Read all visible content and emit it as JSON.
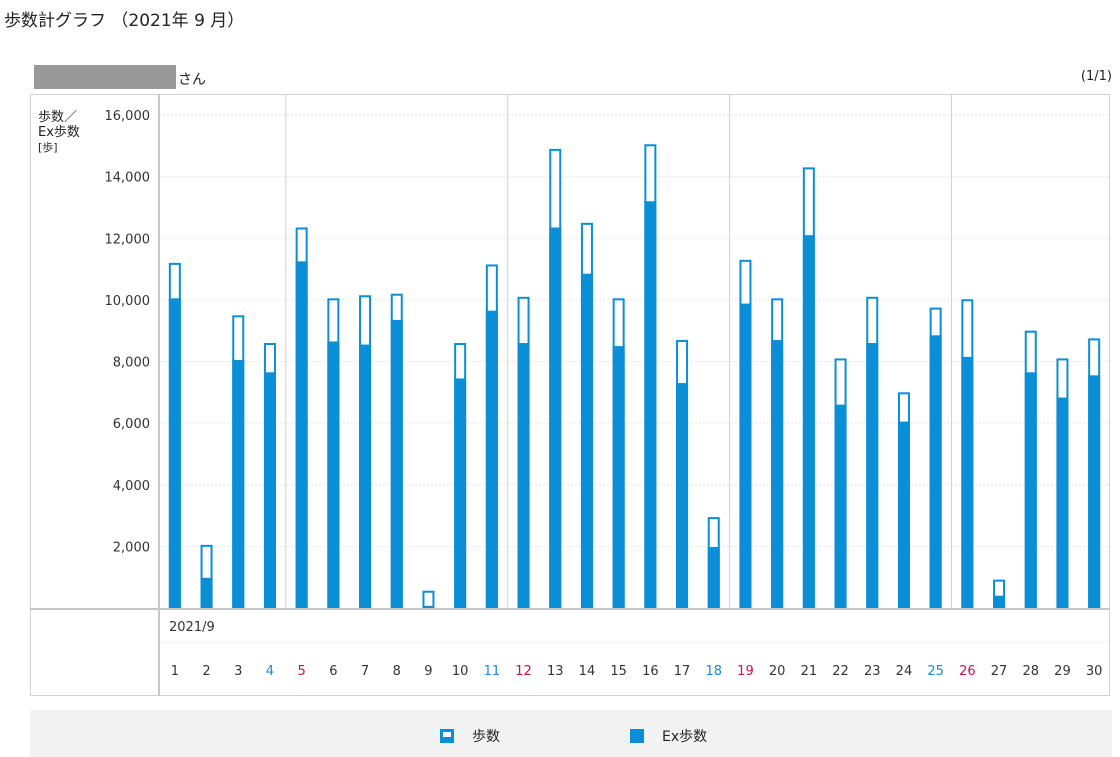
{
  "page": {
    "title": "歩数計グラフ （2021年 9 月）",
    "user_suffix": "さん",
    "page_indicator": "(1/1)"
  },
  "colors": {
    "bar": "#0a8fd6",
    "weekday": "#333333",
    "saturday": "#1a8ad4",
    "sunday": "#c8104a",
    "grid": "#e5e5e5"
  },
  "chart_data": {
    "type": "bar",
    "ylabel": [
      "歩数／",
      "Ex歩数"
    ],
    "yunit": "[歩]",
    "xlabel": "2021/9",
    "ylim": [
      0,
      16000
    ],
    "yticks": [
      2000,
      4000,
      6000,
      8000,
      10000,
      12000,
      14000,
      16000
    ],
    "ytick_labels": [
      "2,000",
      "4,000",
      "6,000",
      "8,000",
      "10,000",
      "12,000",
      "14,000",
      "16,000"
    ],
    "categories": [
      "1",
      "2",
      "3",
      "4",
      "5",
      "6",
      "7",
      "8",
      "9",
      "10",
      "11",
      "12",
      "13",
      "14",
      "15",
      "16",
      "17",
      "18",
      "19",
      "20",
      "21",
      "22",
      "23",
      "24",
      "25",
      "26",
      "27",
      "28",
      "29",
      "30"
    ],
    "day_types": [
      "w",
      "w",
      "w",
      "sat",
      "sun",
      "w",
      "w",
      "w",
      "w",
      "w",
      "sat",
      "sun",
      "w",
      "w",
      "w",
      "w",
      "w",
      "sat",
      "sun",
      "w",
      "w",
      "w",
      "w",
      "w",
      "sat",
      "sun",
      "w",
      "w",
      "w",
      "w"
    ],
    "week_separators_after": [
      4,
      11,
      18,
      25
    ],
    "series": [
      {
        "name": "歩数",
        "values": [
          11200,
          2050,
          9500,
          8600,
          12350,
          10050,
          10150,
          10200,
          560,
          8600,
          11150,
          10100,
          14900,
          12500,
          10050,
          15050,
          8700,
          2950,
          11300,
          10050,
          14300,
          8100,
          10100,
          7000,
          9750,
          10020,
          920,
          9000,
          8100,
          8750
        ]
      },
      {
        "name": "Ex歩数",
        "values": [
          10050,
          980,
          8050,
          7650,
          11250,
          8650,
          8550,
          9350,
          70,
          7450,
          9650,
          8600,
          12350,
          10850,
          8500,
          13200,
          7300,
          1980,
          9880,
          8700,
          12100,
          6600,
          8600,
          6050,
          8850,
          8150,
          400,
          7650,
          6830,
          7550
        ]
      }
    ],
    "legend": [
      {
        "label": "歩数",
        "style": "outline"
      },
      {
        "label": "Ex歩数",
        "style": "solid"
      }
    ],
    "legend_position": "bottom",
    "grid": true
  }
}
